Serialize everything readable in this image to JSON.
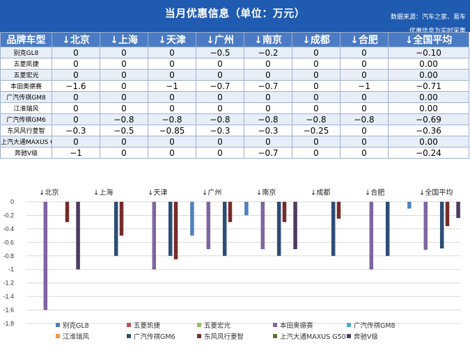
{
  "header": {
    "title": "当月优惠信息（单位：万元）",
    "source": "数据来源：汽车之家、易车",
    "note": "优惠信息为实时采集"
  },
  "table": {
    "columns": [
      "品牌车型",
      "↓北京",
      "↓上海",
      "↓天津",
      "↓广州",
      "↓南京",
      "↓成都",
      "↓合肥",
      "↓全国平均"
    ],
    "rows": [
      {
        "name": "别克GL8",
        "values": [
          "0",
          "0",
          "0",
          "−0.5",
          "−0.2",
          "0",
          "0",
          "−0.10"
        ]
      },
      {
        "name": "五菱凯捷",
        "values": [
          "0",
          "0",
          "0",
          "0",
          "0",
          "0",
          "0",
          "0.00"
        ]
      },
      {
        "name": "五菱宏光",
        "values": [
          "0",
          "0",
          "0",
          "0",
          "0",
          "0",
          "0",
          "0.00"
        ]
      },
      {
        "name": "本田奥德赛",
        "values": [
          "−1.6",
          "0",
          "−1",
          "−0.7",
          "−0.7",
          "0",
          "−1",
          "−0.71"
        ]
      },
      {
        "name": "广汽传祺GM8",
        "values": [
          "0",
          "0",
          "0",
          "0",
          "0",
          "0",
          "0",
          "0.00"
        ]
      },
      {
        "name": "江淮瑞风",
        "values": [
          "0",
          "0",
          "0",
          "0",
          "0",
          "0",
          "0",
          "0.00"
        ]
      },
      {
        "name": "广汽传祺GM6",
        "values": [
          "0",
          "−0.8",
          "−0.8",
          "−0.8",
          "−0.8",
          "−0.8",
          "−0.8",
          "−0.69"
        ]
      },
      {
        "name": "东风风行菱智",
        "values": [
          "−0.3",
          "−0.5",
          "−0.85",
          "−0.3",
          "−0.3",
          "−0.25",
          "0",
          "−0.36"
        ]
      },
      {
        "name": "上汽大通MAXUS G50",
        "values": [
          "0",
          "0",
          "0",
          "0",
          "0",
          "0",
          "0",
          "0.00"
        ]
      },
      {
        "name": "奔驰V级",
        "values": [
          "−1",
          "0",
          "0",
          "0",
          "−0.7",
          "0",
          "0",
          "−0.24"
        ]
      }
    ]
  },
  "chart_data": {
    "type": "bar",
    "categories": [
      "↓北京",
      "↓上海",
      "↓天津",
      "↓广州",
      "↓南京",
      "↓成都",
      "↓合肥",
      "↓全国平均"
    ],
    "ylim": [
      -1.8,
      0
    ],
    "yticks": [
      "0",
      "-0.2",
      "-0.4",
      "-0.6",
      "-0.8",
      "-1",
      "-1.2",
      "-1.4",
      "-1.6",
      "-1.8"
    ],
    "grid": true,
    "legend_position": "bottom",
    "series": [
      {
        "name": "别克GL8",
        "color": "#4f81bd",
        "values": [
          0,
          0,
          0,
          -0.5,
          -0.2,
          0,
          0,
          -0.1
        ]
      },
      {
        "name": "五菱凯捷",
        "color": "#c0504d",
        "values": [
          0,
          0,
          0,
          0,
          0,
          0,
          0,
          0
        ]
      },
      {
        "name": "五菱宏光",
        "color": "#9bbb59",
        "values": [
          0,
          0,
          0,
          0,
          0,
          0,
          0,
          0
        ]
      },
      {
        "name": "本田奥德赛",
        "color": "#8064a2",
        "values": [
          -1.6,
          0,
          -1,
          -0.7,
          -0.7,
          0,
          -1,
          -0.71
        ]
      },
      {
        "name": "广汽传祺GM8",
        "color": "#4bacc6",
        "values": [
          0,
          0,
          0,
          0,
          0,
          0,
          0,
          0
        ]
      },
      {
        "name": "江淮瑞风",
        "color": "#f79646",
        "values": [
          0,
          0,
          0,
          0,
          0,
          0,
          0,
          0
        ]
      },
      {
        "name": "广汽传祺GM6",
        "color": "#2c4d75",
        "values": [
          0,
          -0.8,
          -0.8,
          -0.8,
          -0.8,
          -0.8,
          -0.8,
          -0.69
        ]
      },
      {
        "name": "东风风行菱智",
        "color": "#772c2a",
        "values": [
          -0.3,
          -0.5,
          -0.85,
          -0.3,
          -0.3,
          -0.25,
          0,
          -0.36
        ]
      },
      {
        "name": "上汽大通MAXUS G50",
        "color": "#5f7530",
        "values": [
          0,
          0,
          0,
          0,
          0,
          0,
          0,
          0
        ]
      },
      {
        "name": "奔驰V级",
        "color": "#4d3b62",
        "values": [
          -1,
          0,
          0,
          0,
          -0.7,
          0,
          0,
          -0.24
        ]
      }
    ]
  }
}
